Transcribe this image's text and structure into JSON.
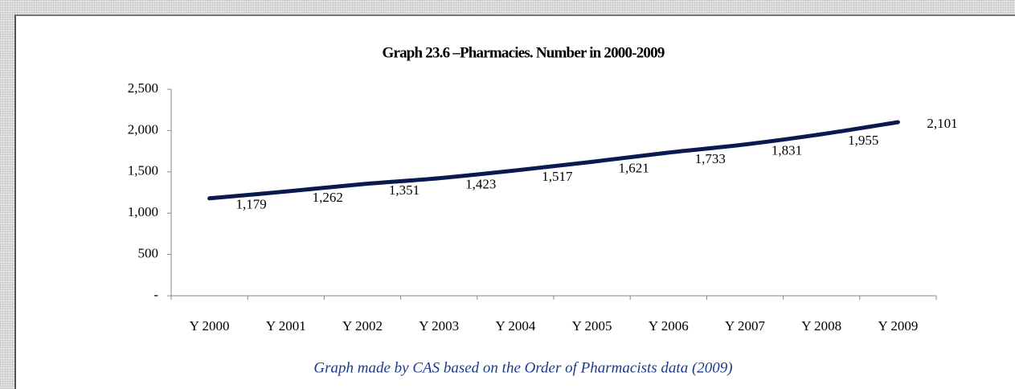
{
  "chart_data": {
    "type": "line",
    "title": "Graph 23.6 –Pharmacies. Number in 2000-2009",
    "caption": "Graph made by CAS based on the Order of Pharmacists data (2009)",
    "categories": [
      "Y 2000",
      "Y 2001",
      "Y 2002",
      "Y 2003",
      "Y 2004",
      "Y 2005",
      "Y 2006",
      "Y 2007",
      "Y 2008",
      "Y 2009"
    ],
    "series": [
      {
        "name": "Pharmacies",
        "color": "#0b1a4e",
        "values": [
          1179,
          1262,
          1351,
          1423,
          1517,
          1621,
          1733,
          1831,
          1955,
          2101
        ],
        "value_labels": [
          "1,179",
          "1,262",
          "1,351",
          "1,423",
          "1,517",
          "1,621",
          "1,733",
          "1,831",
          "1,955",
          "2,101"
        ]
      }
    ],
    "ylim": [
      0,
      2500
    ],
    "yticks": [
      {
        "value": 0,
        "label": "-"
      },
      500,
      {
        "value": 1000,
        "label": "1,000"
      },
      {
        "value": 1500,
        "label": "1,500"
      },
      {
        "value": 2000,
        "label": "2,000"
      },
      {
        "value": 2500,
        "label": "2,500"
      }
    ]
  }
}
